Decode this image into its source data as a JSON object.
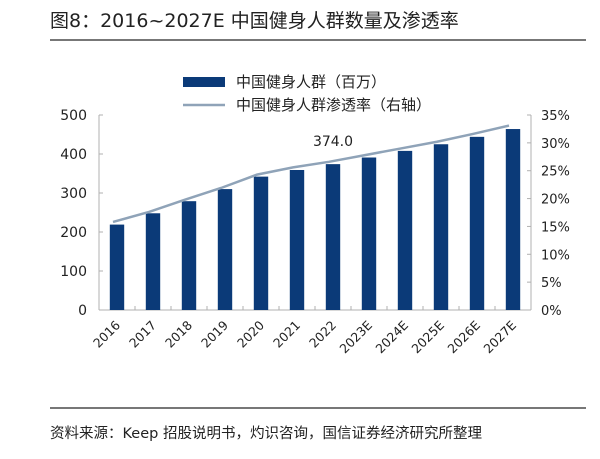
{
  "title": "图8：2016~2027E 中国健身人群数量及渗透率",
  "source": "资料来源：Keep 招股说明书，灼识咨询，国信证券经济研究所整理",
  "colors": {
    "bar": "#0b3a78",
    "line": "#8fa3b8",
    "axis": "#b0b0b0"
  },
  "chart_data": {
    "type": "bar",
    "categories": [
      "2016",
      "2017",
      "2018",
      "2019",
      "2020",
      "2021",
      "2022",
      "2023E",
      "2024E",
      "2025E",
      "2026E",
      "2027E"
    ],
    "series": [
      {
        "name": "中国健身人群（百万）",
        "type": "bar",
        "axis": "left",
        "values": [
          219,
          248,
          279,
          310,
          342,
          359,
          374,
          391,
          408,
          425,
          444,
          464
        ]
      },
      {
        "name": "中国健身人群渗透率（右轴）",
        "type": "line",
        "axis": "right",
        "values": [
          15.8,
          17.6,
          19.8,
          21.9,
          24.3,
          25.6,
          26.6,
          27.8,
          29.0,
          30.2,
          31.6,
          33.1
        ]
      }
    ],
    "annotations": [
      {
        "category": "2022",
        "text": "374.0"
      }
    ],
    "yleft": {
      "lim": [
        0,
        500
      ],
      "ticks": [
        "0",
        "100",
        "200",
        "300",
        "400",
        "500"
      ]
    },
    "yright": {
      "lim": [
        0,
        35
      ],
      "ticks": [
        "0%",
        "5%",
        "10%",
        "15%",
        "20%",
        "25%",
        "30%",
        "35%"
      ]
    },
    "legend": "top-center",
    "grid": false
  }
}
